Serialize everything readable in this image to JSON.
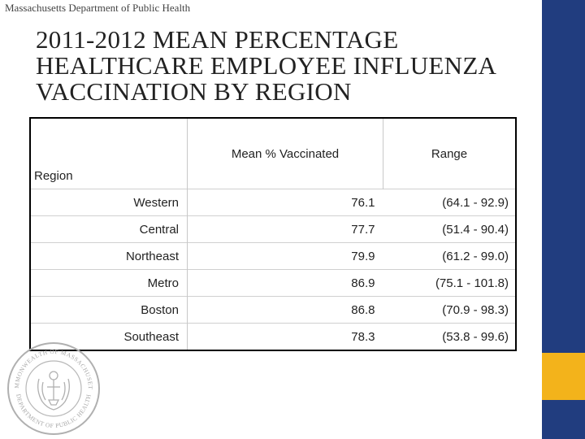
{
  "header": {
    "organization": "Massachusetts Department of Public Health",
    "title": "2011-2012 Mean Percentage Healthcare Employee Influenza Vaccination by Region"
  },
  "table": {
    "columns": [
      "Mean % Vaccinated",
      "Range"
    ],
    "row_header": "Region",
    "rows": [
      {
        "region": "Western",
        "mean": "76.1",
        "range": "(64.1 - 92.9)"
      },
      {
        "region": "Central",
        "mean": "77.7",
        "range": "(51.4 - 90.4)"
      },
      {
        "region": "Northeast",
        "mean": "79.9",
        "range": "(61.2 - 99.0)"
      },
      {
        "region": "Metro",
        "mean": "86.9",
        "range": "(75.1 - 101.8)"
      },
      {
        "region": "Boston",
        "mean": "86.8",
        "range": "(70.9 - 98.3)"
      },
      {
        "region": "Southeast",
        "mean": "78.3",
        "range": "(53.8 - 99.6)"
      }
    ]
  },
  "seal": {
    "text_top": "COMMONWEALTH OF MASSACHUSETTS",
    "text_bottom": "DEPARTMENT OF PUBLIC HEALTH"
  },
  "colors": {
    "side_bar": "#213d7f",
    "side_accent": "#f3b31b"
  }
}
